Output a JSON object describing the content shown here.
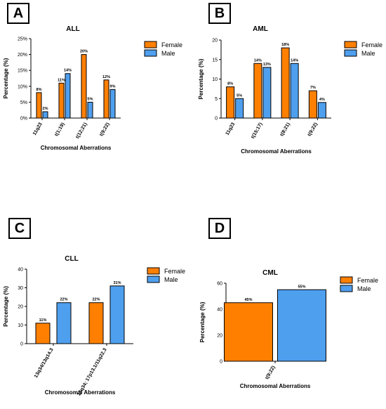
{
  "chart_data": [
    {
      "type": "bar",
      "panel_label": "A",
      "title": "ALL",
      "xlabel": "Chromosomal Aberrations",
      "ylabel": "Percentage (%)",
      "ylim": [
        0,
        25
      ],
      "yticks": [
        "0%",
        "5%",
        "10%",
        "15%",
        "20%",
        "25%"
      ],
      "categories": [
        "11q23",
        "t(1;19)",
        "t(12;21)",
        "t(9;22)"
      ],
      "series": [
        {
          "name": "Female",
          "color": "#FF8000",
          "values": [
            8,
            11,
            20,
            12
          ],
          "labels": [
            "8%",
            "11%",
            "20%",
            "12%"
          ]
        },
        {
          "name": "Male",
          "color": "#4F9FEF",
          "values": [
            2,
            14,
            5,
            9
          ],
          "labels": [
            "2%",
            "14%",
            "5%",
            "9%"
          ]
        }
      ],
      "legend_position": "top-right"
    },
    {
      "type": "bar",
      "panel_label": "B",
      "title": "AML",
      "xlabel": "Chromosomal Aberrations",
      "ylabel": "Percentage (%)",
      "ylim": [
        0,
        20
      ],
      "yticks": [
        "0",
        "5",
        "10",
        "15",
        "20"
      ],
      "categories": [
        "11q23",
        "t(15;17)",
        "t(8;21)",
        "t(9;22)"
      ],
      "series": [
        {
          "name": "Female",
          "color": "#FF8000",
          "values": [
            8,
            14,
            18,
            7
          ],
          "labels": [
            "8%",
            "14%",
            "18%",
            "7%"
          ]
        },
        {
          "name": "Male",
          "color": "#4F9FEF",
          "values": [
            5,
            13,
            14,
            4
          ],
          "labels": [
            "5%",
            "13%",
            "14%",
            "4%"
          ]
        }
      ],
      "legend_position": "top-right"
    },
    {
      "type": "bar",
      "panel_label": "C",
      "title": "CLL",
      "xlabel": "Chromosomal Aberrations",
      "ylabel": "Percentage (%)",
      "ylim": [
        0,
        40
      ],
      "yticks": [
        "0",
        "10",
        "20",
        "30",
        "40"
      ],
      "categories": [
        "13q34/13q14.3",
        "13q34; 17p13.1/11q22.3"
      ],
      "series": [
        {
          "name": "Female",
          "color": "#FF8000",
          "values": [
            11,
            22
          ],
          "labels": [
            "11%",
            "22%"
          ]
        },
        {
          "name": "Male",
          "color": "#4F9FEF",
          "values": [
            22,
            31
          ],
          "labels": [
            "22%",
            "31%"
          ]
        }
      ],
      "legend_position": "top-right"
    },
    {
      "type": "bar",
      "panel_label": "D",
      "title": "CML",
      "xlabel": "Chromosomal Aberrations",
      "ylabel": "Percentage (%)",
      "ylim": [
        0,
        60
      ],
      "yticks": [
        "0",
        "20",
        "40",
        "60"
      ],
      "categories": [
        "t(9;22)"
      ],
      "series": [
        {
          "name": "Female",
          "color": "#FF8000",
          "values": [
            45
          ],
          "labels": [
            "45%"
          ]
        },
        {
          "name": "Male",
          "color": "#4F9FEF",
          "values": [
            55
          ],
          "labels": [
            "55%"
          ]
        }
      ],
      "legend_position": "top-right"
    }
  ]
}
